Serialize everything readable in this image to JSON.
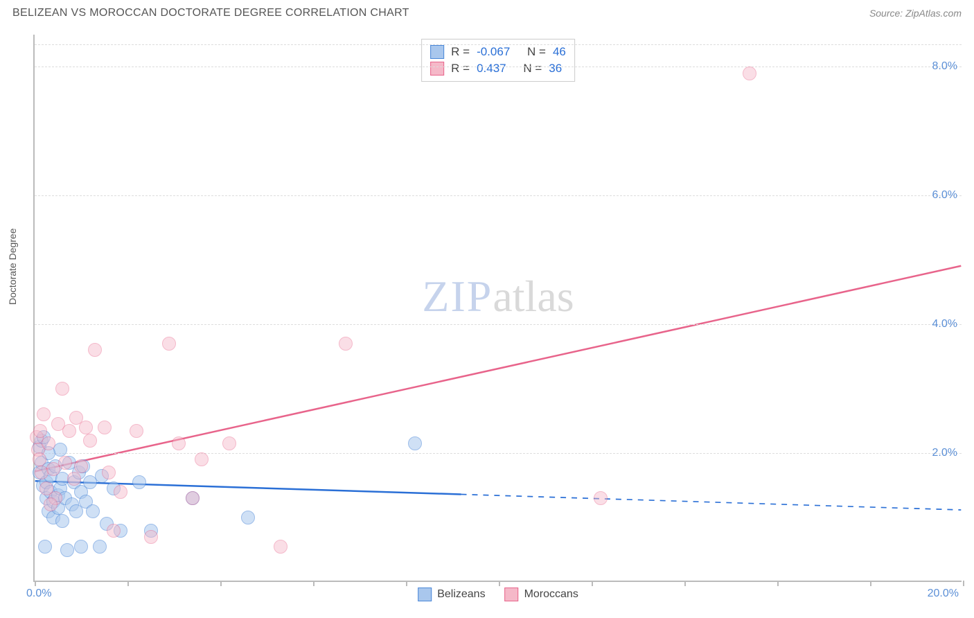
{
  "title": "BELIZEAN VS MOROCCAN DOCTORATE DEGREE CORRELATION CHART",
  "source_prefix": "Source: ",
  "source_name": "ZipAtlas.com",
  "y_axis_label": "Doctorate Degree",
  "watermark_a": "ZIP",
  "watermark_b": "atlas",
  "chart": {
    "type": "scatter",
    "xlim": [
      0,
      20
    ],
    "ylim": [
      0,
      8.5
    ],
    "x_ticks": [
      0,
      2,
      4,
      6,
      8,
      10,
      12,
      14,
      16,
      18,
      20
    ],
    "x_tick_labels_shown": {
      "0": "0.0%",
      "20": "20.0%"
    },
    "y_gridlines": [
      2,
      4,
      6,
      8
    ],
    "y_tick_labels": {
      "2": "2.0%",
      "4": "4.0%",
      "6": "6.0%",
      "8": "8.0%"
    },
    "background_color": "#ffffff",
    "grid_color": "#dddddd",
    "axis_color": "#bbbbbb",
    "tick_label_color": "#5b8fd6",
    "marker_radius": 10,
    "marker_stroke_width": 1.2,
    "series": [
      {
        "name": "Belizeans",
        "fill": "#a9c7ed",
        "stroke": "#4a87d8",
        "fill_opacity": 0.55,
        "correlation_R": "-0.067",
        "N": "46",
        "trend": {
          "x1": 0,
          "y1": 1.55,
          "x2_solid": 9.2,
          "x2": 20,
          "y2": 1.1,
          "color": "#2a6fd6",
          "width": 2.5,
          "dash_after_solid": true
        },
        "points": [
          [
            0.1,
            1.7
          ],
          [
            0.1,
            2.1
          ],
          [
            0.15,
            2.2
          ],
          [
            0.15,
            1.85
          ],
          [
            0.18,
            1.5
          ],
          [
            0.2,
            2.25
          ],
          [
            0.22,
            0.55
          ],
          [
            0.25,
            1.3
          ],
          [
            0.25,
            1.55
          ],
          [
            0.3,
            1.75
          ],
          [
            0.3,
            1.1
          ],
          [
            0.35,
            1.4
          ],
          [
            0.35,
            1.65
          ],
          [
            0.4,
            1.25
          ],
          [
            0.4,
            1.0
          ],
          [
            0.45,
            1.8
          ],
          [
            0.5,
            1.35
          ],
          [
            0.5,
            1.15
          ],
          [
            0.55,
            2.05
          ],
          [
            0.55,
            1.45
          ],
          [
            0.6,
            1.6
          ],
          [
            0.6,
            0.95
          ],
          [
            0.65,
            1.3
          ],
          [
            0.7,
            0.5
          ],
          [
            0.75,
            1.85
          ],
          [
            0.8,
            1.2
          ],
          [
            0.85,
            1.55
          ],
          [
            0.9,
            1.1
          ],
          [
            0.95,
            1.7
          ],
          [
            1.0,
            1.4
          ],
          [
            1.0,
            0.55
          ],
          [
            1.05,
            1.8
          ],
          [
            1.1,
            1.25
          ],
          [
            1.2,
            1.55
          ],
          [
            1.25,
            1.1
          ],
          [
            1.4,
            0.55
          ],
          [
            1.45,
            1.65
          ],
          [
            1.55,
            0.9
          ],
          [
            1.7,
            1.45
          ],
          [
            1.85,
            0.8
          ],
          [
            2.25,
            1.55
          ],
          [
            2.5,
            0.8
          ],
          [
            3.4,
            1.3
          ],
          [
            4.6,
            1.0
          ],
          [
            8.2,
            2.15
          ],
          [
            0.3,
            2.0
          ]
        ]
      },
      {
        "name": "Moroccans",
        "fill": "#f5b8c8",
        "stroke": "#e8648b",
        "fill_opacity": 0.45,
        "correlation_R": "0.437",
        "N": "36",
        "trend": {
          "x1": 0,
          "y1": 1.7,
          "x2_solid": 20,
          "x2": 20,
          "y2": 4.9,
          "color": "#e8648b",
          "width": 2.5,
          "dash_after_solid": false
        },
        "points": [
          [
            0.05,
            2.25
          ],
          [
            0.08,
            2.05
          ],
          [
            0.1,
            1.9
          ],
          [
            0.12,
            2.35
          ],
          [
            0.15,
            1.7
          ],
          [
            0.2,
            2.6
          ],
          [
            0.25,
            1.45
          ],
          [
            0.3,
            2.15
          ],
          [
            0.4,
            1.75
          ],
          [
            0.45,
            1.3
          ],
          [
            0.5,
            2.45
          ],
          [
            0.6,
            3.0
          ],
          [
            0.65,
            1.85
          ],
          [
            0.75,
            2.35
          ],
          [
            0.85,
            1.6
          ],
          [
            0.9,
            2.55
          ],
          [
            1.0,
            1.8
          ],
          [
            1.1,
            2.4
          ],
          [
            1.2,
            2.2
          ],
          [
            1.3,
            3.6
          ],
          [
            1.5,
            2.4
          ],
          [
            1.6,
            1.7
          ],
          [
            1.7,
            0.8
          ],
          [
            1.85,
            1.4
          ],
          [
            2.2,
            2.35
          ],
          [
            2.5,
            0.7
          ],
          [
            2.9,
            3.7
          ],
          [
            3.1,
            2.15
          ],
          [
            3.4,
            1.3
          ],
          [
            3.6,
            1.9
          ],
          [
            4.2,
            2.15
          ],
          [
            5.3,
            0.55
          ],
          [
            6.7,
            3.7
          ],
          [
            12.2,
            1.3
          ],
          [
            15.4,
            7.9
          ],
          [
            0.35,
            1.2
          ]
        ]
      }
    ]
  },
  "legend_top": {
    "r_label": "R =",
    "n_label": "N ="
  },
  "legend_bottom": [
    {
      "label": "Belizeans",
      "fill": "#a9c7ed",
      "stroke": "#4a87d8"
    },
    {
      "label": "Moroccans",
      "fill": "#f5b8c8",
      "stroke": "#e8648b"
    }
  ]
}
